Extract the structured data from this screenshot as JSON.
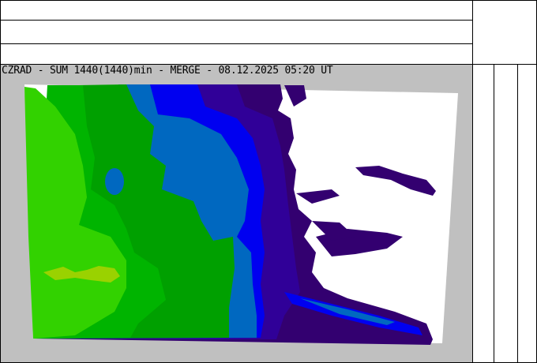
{
  "header": {
    "rows": [
      "",
      "",
      ""
    ]
  },
  "map": {
    "title": "CZRAD - SUM 1440(1440)min - MERGE - 08.12.2025 05:20 UT",
    "background_color": "#c0c0c0",
    "colors": {
      "none": "#ffffff",
      "dark_purple": "#330070",
      "purple": "#300098",
      "blue": "#0000f0",
      "teal_blue": "#0068c0",
      "dark_green": "#00a000",
      "green": "#00b400",
      "light_green": "#32d200",
      "yellow_green": "#9ad200"
    }
  },
  "legend": {
    "columns": [
      "",
      "",
      ""
    ]
  }
}
